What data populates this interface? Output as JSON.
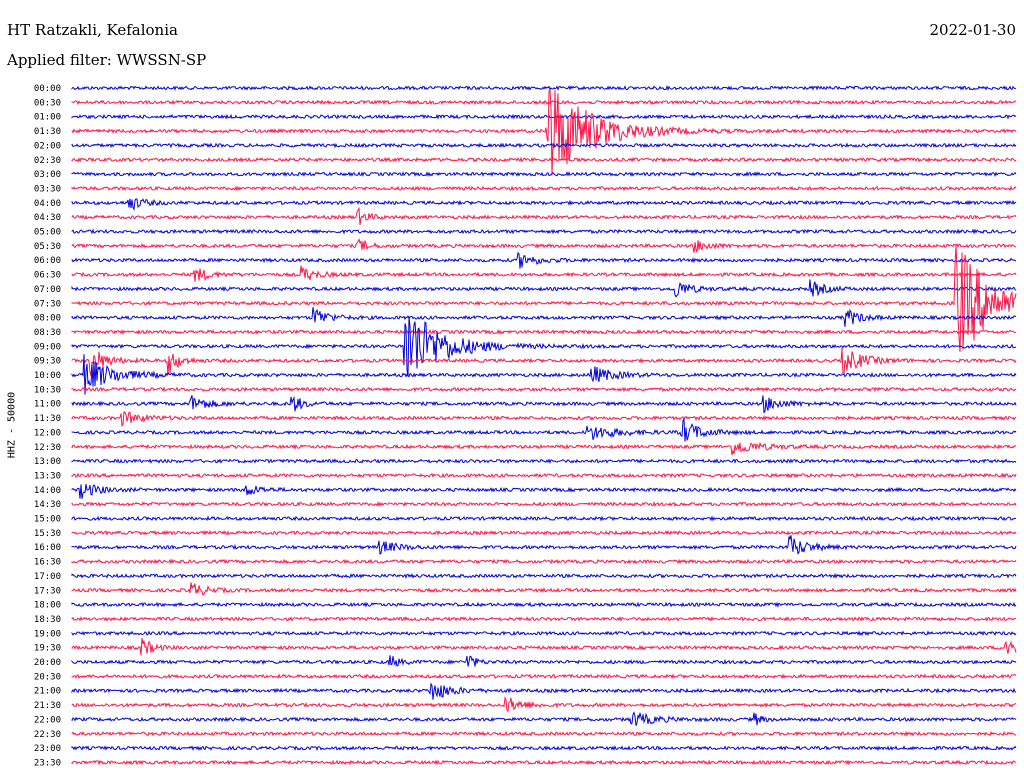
{
  "header": {
    "station": "HT Ratzakli, Kefalonia",
    "filter": "Applied filter: WWSSN-SP",
    "date": "2022-01-30"
  },
  "chart_data": {
    "type": "line",
    "title": "HT Ratzakli, Kefalonia",
    "subtitle": "Applied filter: WWSSN-SP",
    "date": "2022-01-30",
    "channel_label": "HHZ - 50000",
    "ylabel": "HHZ - 50000",
    "xlabel": "",
    "trace_colors": [
      "#0000dd",
      "#ff1446"
    ],
    "row_labels": [
      "00:00",
      "00:30",
      "01:00",
      "01:30",
      "02:00",
      "02:30",
      "03:00",
      "03:30",
      "04:00",
      "04:30",
      "05:00",
      "05:30",
      "06:00",
      "06:30",
      "07:00",
      "07:30",
      "08:00",
      "08:30",
      "09:00",
      "09:30",
      "10:00",
      "10:30",
      "11:00",
      "11:30",
      "12:00",
      "12:30",
      "13:00",
      "13:30",
      "14:00",
      "14:30",
      "15:00",
      "15:30",
      "16:00",
      "16:30",
      "17:00",
      "17:30",
      "18:00",
      "18:30",
      "19:00",
      "19:30",
      "20:00",
      "20:30",
      "21:00",
      "21:30",
      "22:00",
      "22:30",
      "23:00",
      "23:30"
    ],
    "row_minutes": 30,
    "grid": false,
    "events": [
      {
        "row": 3,
        "minute": 15.1,
        "amplitude": 4.5,
        "duration": 1.2
      },
      {
        "row": 8,
        "minute": 1.8,
        "amplitude": 0.6,
        "duration": 0.4
      },
      {
        "row": 9,
        "minute": 9.1,
        "amplitude": 0.6,
        "duration": 0.3
      },
      {
        "row": 11,
        "minute": 9.1,
        "amplitude": 0.5,
        "duration": 0.3
      },
      {
        "row": 11,
        "minute": 19.8,
        "amplitude": 0.5,
        "duration": 0.4
      },
      {
        "row": 12,
        "minute": 14.2,
        "amplitude": 0.6,
        "duration": 0.5
      },
      {
        "row": 13,
        "minute": 3.9,
        "amplitude": 0.6,
        "duration": 0.4
      },
      {
        "row": 13,
        "minute": 7.3,
        "amplitude": 0.6,
        "duration": 0.4
      },
      {
        "row": 14,
        "minute": 19.2,
        "amplitude": 0.7,
        "duration": 0.4
      },
      {
        "row": 14,
        "minute": 23.5,
        "amplitude": 0.6,
        "duration": 0.4
      },
      {
        "row": 15,
        "minute": 28.1,
        "amplitude": 5.0,
        "duration": 1.0
      },
      {
        "row": 16,
        "minute": 7.7,
        "amplitude": 0.8,
        "duration": 0.4
      },
      {
        "row": 16,
        "minute": 24.6,
        "amplitude": 0.7,
        "duration": 0.4
      },
      {
        "row": 18,
        "minute": 10.6,
        "amplitude": 3.5,
        "duration": 1.0
      },
      {
        "row": 19,
        "minute": 0.6,
        "amplitude": 1.2,
        "duration": 0.4
      },
      {
        "row": 19,
        "minute": 3.1,
        "amplitude": 1.0,
        "duration": 0.3
      },
      {
        "row": 19,
        "minute": 24.5,
        "amplitude": 1.0,
        "duration": 0.6
      },
      {
        "row": 20,
        "minute": 0.4,
        "amplitude": 1.5,
        "duration": 0.8
      },
      {
        "row": 20,
        "minute": 16.5,
        "amplitude": 0.7,
        "duration": 0.6
      },
      {
        "row": 22,
        "minute": 3.8,
        "amplitude": 0.6,
        "duration": 0.5
      },
      {
        "row": 22,
        "minute": 7.0,
        "amplitude": 0.7,
        "duration": 0.3
      },
      {
        "row": 22,
        "minute": 22.0,
        "amplitude": 0.6,
        "duration": 0.5
      },
      {
        "row": 23,
        "minute": 1.6,
        "amplitude": 0.5,
        "duration": 0.6
      },
      {
        "row": 24,
        "minute": 16.4,
        "amplitude": 0.6,
        "duration": 0.8
      },
      {
        "row": 24,
        "minute": 19.4,
        "amplitude": 1.0,
        "duration": 0.5
      },
      {
        "row": 25,
        "minute": 21.0,
        "amplitude": 0.6,
        "duration": 0.7
      },
      {
        "row": 28,
        "minute": 0.3,
        "amplitude": 0.6,
        "duration": 0.5
      },
      {
        "row": 28,
        "minute": 5.5,
        "amplitude": 0.5,
        "duration": 0.4
      },
      {
        "row": 32,
        "minute": 22.8,
        "amplitude": 0.9,
        "duration": 0.5
      },
      {
        "row": 32,
        "minute": 9.8,
        "amplitude": 0.5,
        "duration": 0.5
      },
      {
        "row": 35,
        "minute": 3.8,
        "amplitude": 0.6,
        "duration": 0.4
      },
      {
        "row": 39,
        "minute": 2.2,
        "amplitude": 0.8,
        "duration": 0.3
      },
      {
        "row": 39,
        "minute": 29.7,
        "amplitude": 1.0,
        "duration": 0.4
      },
      {
        "row": 40,
        "minute": 10.1,
        "amplitude": 0.5,
        "duration": 0.3
      },
      {
        "row": 40,
        "minute": 12.6,
        "amplitude": 0.7,
        "duration": 0.2
      },
      {
        "row": 42,
        "minute": 11.4,
        "amplitude": 0.9,
        "duration": 0.5
      },
      {
        "row": 43,
        "minute": 13.8,
        "amplitude": 0.6,
        "duration": 0.5
      },
      {
        "row": 44,
        "minute": 17.8,
        "amplitude": 0.6,
        "duration": 0.6
      },
      {
        "row": 44,
        "minute": 21.7,
        "amplitude": 0.5,
        "duration": 0.2
      }
    ]
  }
}
